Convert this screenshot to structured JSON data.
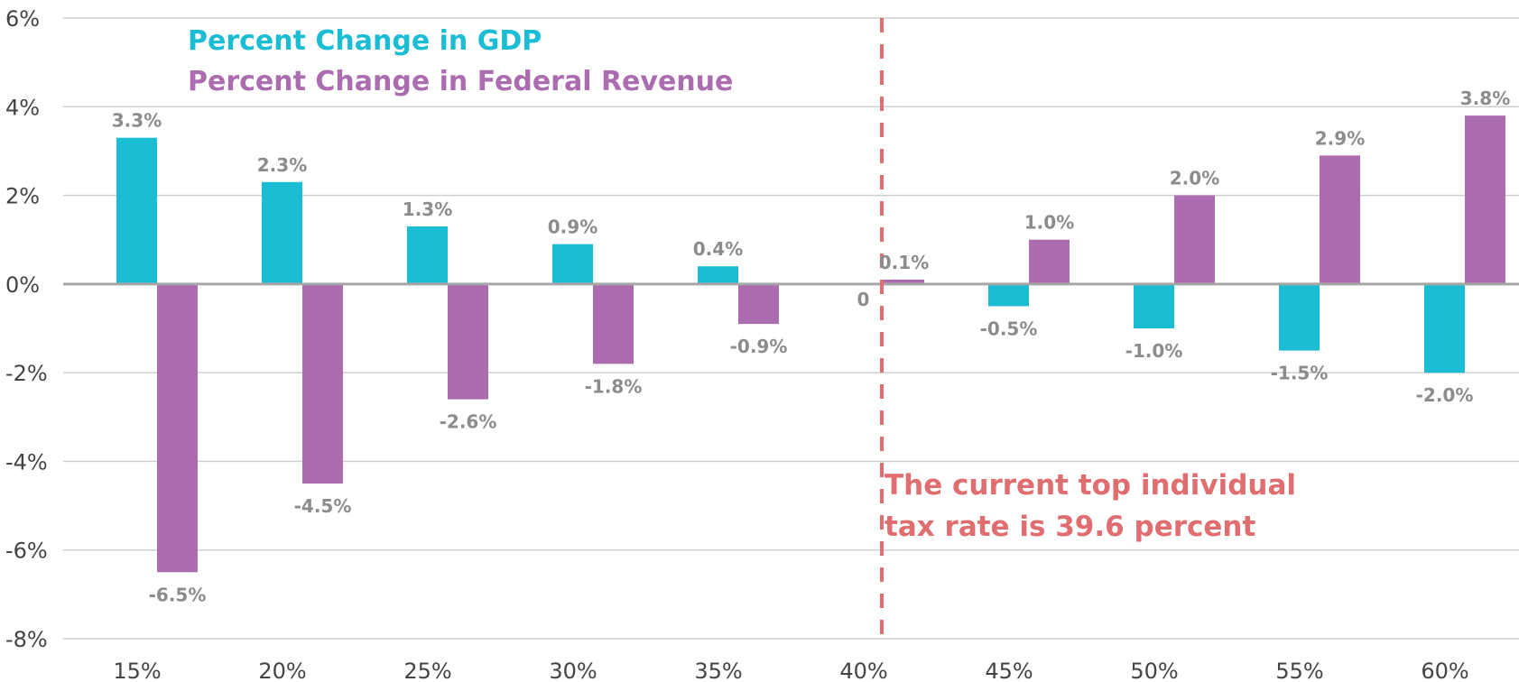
{
  "chart_data": {
    "type": "bar",
    "categories": [
      "15%",
      "20%",
      "25%",
      "30%",
      "35%",
      "40%",
      "45%",
      "50%",
      "55%",
      "60%"
    ],
    "series": [
      {
        "name": "Percent Change in GDP",
        "color": "#1bbdd4",
        "values": [
          3.3,
          2.3,
          1.3,
          0.9,
          0.4,
          0,
          -0.5,
          -1.0,
          -1.5,
          -2.0
        ],
        "labels": [
          "3.3%",
          "2.3%",
          "1.3%",
          "0.9%",
          "0.4%",
          "0",
          "-0.5%",
          "-1.0%",
          "-1.5%",
          "-2.0%"
        ]
      },
      {
        "name": "Percent Change in Federal Revenue",
        "color": "#ab6db0",
        "values": [
          -6.5,
          -4.5,
          -2.6,
          -1.8,
          -0.9,
          0.1,
          1.0,
          2.0,
          2.9,
          3.8
        ],
        "labels": [
          "-6.5%",
          "-4.5%",
          "-2.6%",
          "-1.8%",
          "-0.9%",
          "0.1%",
          "1.0%",
          "2.0%",
          "2.9%",
          "3.8%"
        ]
      }
    ],
    "ylim": [
      -8,
      6
    ],
    "yticks": [
      6,
      4,
      2,
      0,
      -2,
      -4,
      -6,
      -8
    ],
    "ytick_labels": [
      "6%",
      "4%",
      "2%",
      "0%",
      "-2%",
      "-4%",
      "-6%",
      "-8%"
    ],
    "grid": true,
    "legend_placement": "top-left",
    "reference_line": {
      "category": "40%",
      "color": "#e06d6f",
      "style": "dashed"
    },
    "annotation": {
      "lines": [
        "The current top individual",
        "tax rate is 39.6 percent"
      ],
      "color": "#e06d6f"
    }
  }
}
